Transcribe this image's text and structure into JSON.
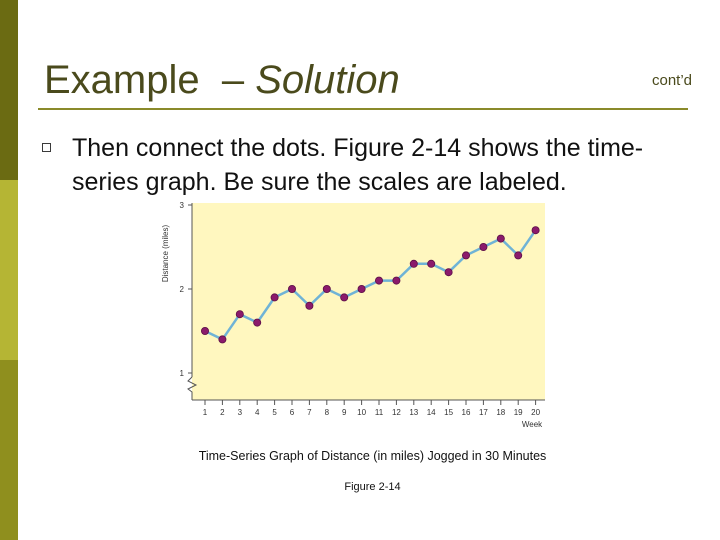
{
  "slide": {
    "title_main": "Example",
    "title_dash": "–",
    "title_sub": "Solution",
    "cont_label": "cont’d",
    "bullet": "Then connect the dots. Figure 2-14 shows the time-series graph. Be sure the scales are labeled.",
    "caption": "Time-Series Graph of Distance (in miles) Jogged in 30 Minutes",
    "figure_label": "Figure 2-14"
  },
  "colors": {
    "accent_dark": "#6b6b12",
    "accent_light": "#b5b534",
    "chart_bg": "#fff7bf",
    "line": "#6fb3d6",
    "marker": "#8b1a6b"
  },
  "chart_data": {
    "type": "line",
    "title": "",
    "xlabel": "Week",
    "ylabel": "Distance (miles)",
    "x": [
      1,
      2,
      3,
      4,
      5,
      6,
      7,
      8,
      9,
      10,
      11,
      12,
      13,
      14,
      15,
      16,
      17,
      18,
      19,
      20
    ],
    "series": [
      {
        "values": [
          1.5,
          1.4,
          1.7,
          1.6,
          1.9,
          2.0,
          1.8,
          2.0,
          1.9,
          2.0,
          2.1,
          2.1,
          2.3,
          2.3,
          2.2,
          2.4,
          2.5,
          2.6,
          2.4,
          2.7
        ]
      }
    ],
    "yticks": [
      1,
      2,
      3
    ],
    "ylim": [
      0,
      3
    ],
    "xlim": [
      1,
      20
    ],
    "axis_break": true,
    "grid": false
  }
}
